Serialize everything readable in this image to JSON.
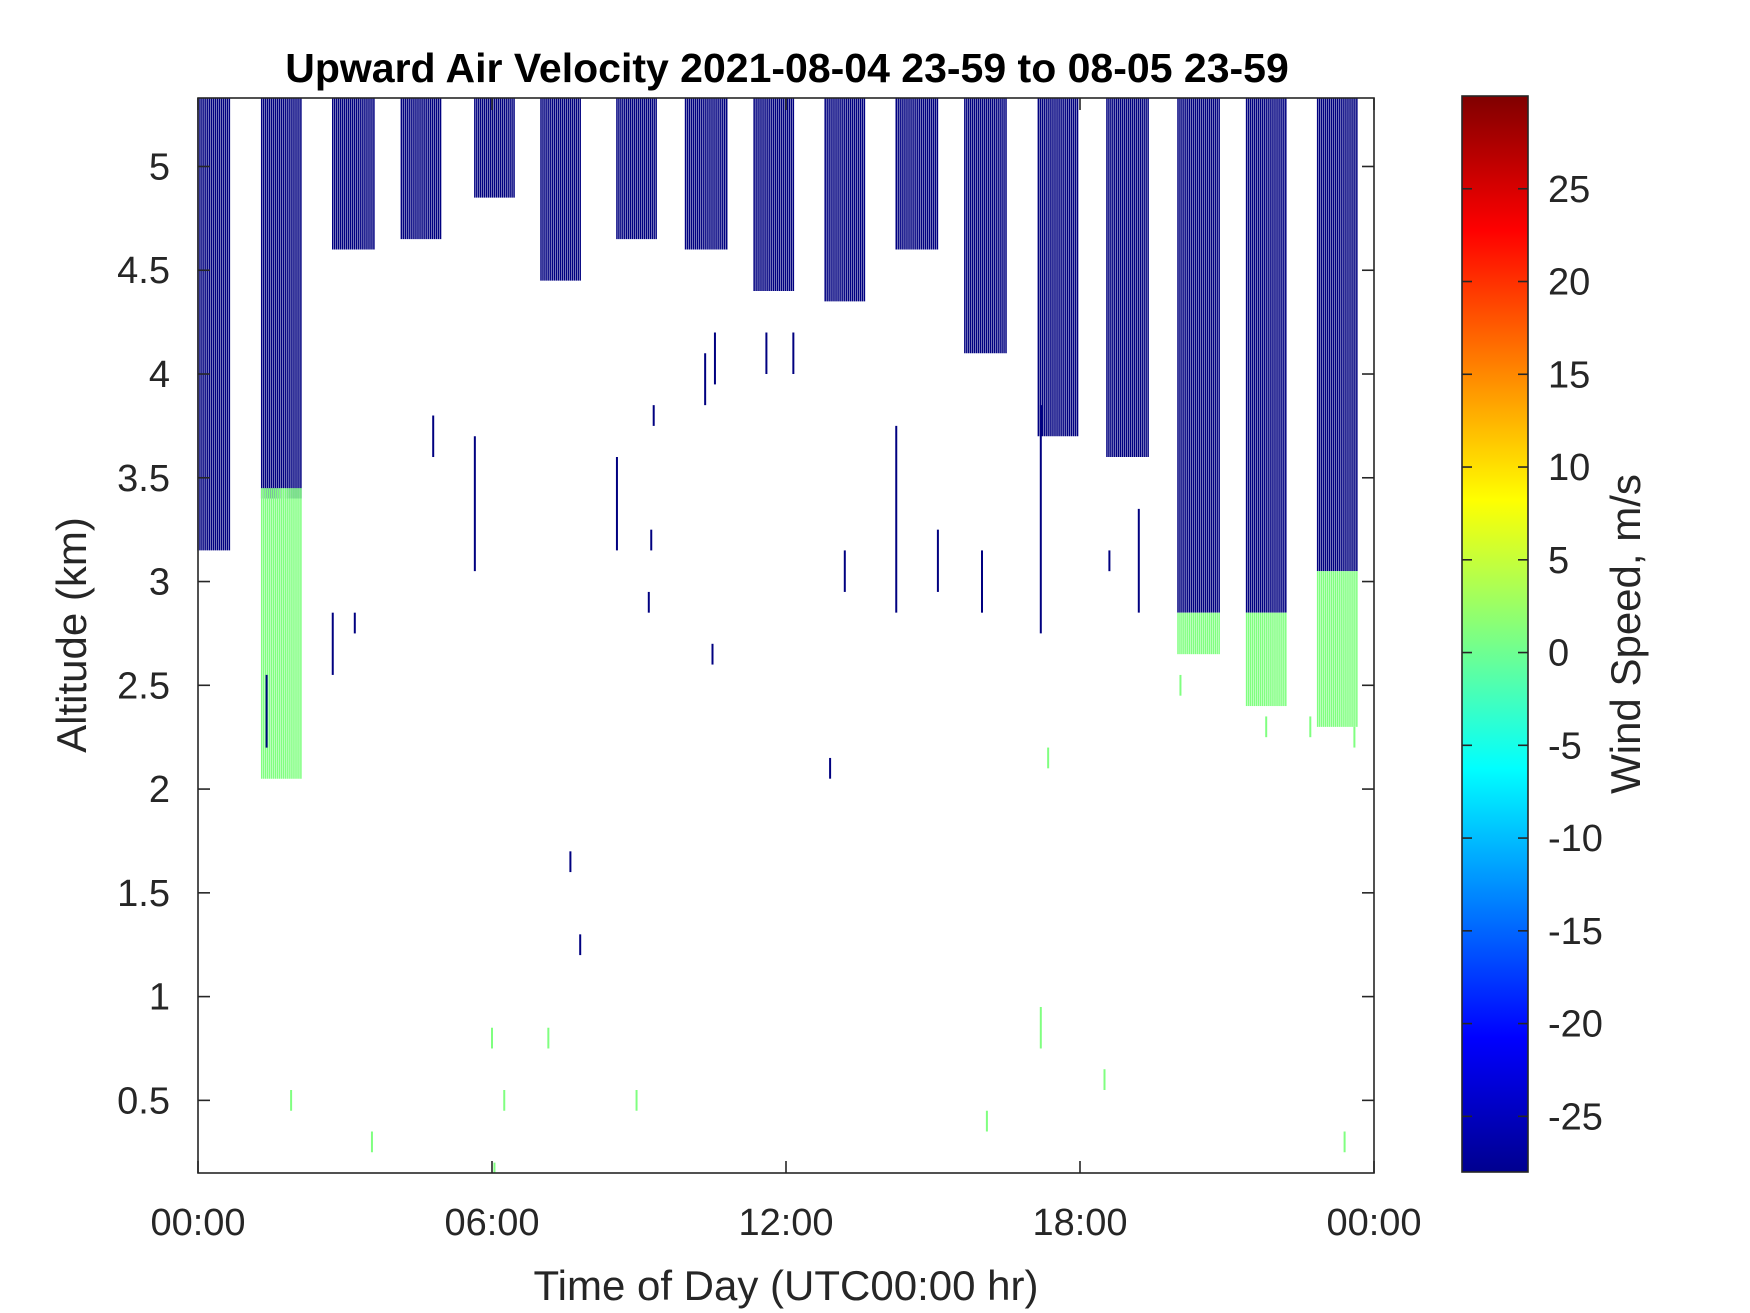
{
  "chart_data": {
    "type": "heatmap",
    "title": "Upward Air Velocity 2021-08-04 23-59 to 08-05 23-59",
    "xlabel": "Time of Day (UTC00:00 hr)",
    "ylabel": "Altitude (km)",
    "xlim": [
      0,
      24
    ],
    "ylim": [
      0.15,
      5.33
    ],
    "x_ticks": [
      0,
      6,
      12,
      18,
      24
    ],
    "x_tick_labels": [
      "00:00",
      "06:00",
      "12:00",
      "18:00",
      "00:00"
    ],
    "y_ticks": [
      0.5,
      1,
      1.5,
      2,
      2.5,
      3,
      3.5,
      4,
      4.5,
      5
    ],
    "y_tick_labels": [
      "0.5",
      "1",
      "1.5",
      "2",
      "2.5",
      "3",
      "3.5",
      "4",
      "4.5",
      "5"
    ],
    "grid": false,
    "colorbar": {
      "label": "Wind Speed, m/s",
      "colormap": "jet",
      "range": [
        -28,
        30
      ],
      "ticks": [
        -25,
        -20,
        -15,
        -10,
        -5,
        0,
        5,
        10,
        15,
        20,
        25
      ],
      "tick_labels": [
        "-25",
        "-20",
        "-15",
        "-10",
        "-5",
        "0",
        "5",
        "10",
        "15",
        "20",
        "25"
      ]
    },
    "profile_blocks": [
      {
        "start": 0.0,
        "end": 0.65,
        "top": 5.33,
        "bottom": 3.15,
        "value": -28
      },
      {
        "start": 1.3,
        "end": 2.1,
        "top": 5.33,
        "bottom": 3.4,
        "value": -28
      },
      {
        "start": 2.75,
        "end": 3.6,
        "top": 5.33,
        "bottom": 4.6,
        "value": -28
      },
      {
        "start": 4.15,
        "end": 4.95,
        "top": 5.33,
        "bottom": 4.65,
        "value": -28
      },
      {
        "start": 5.65,
        "end": 6.45,
        "top": 5.33,
        "bottom": 4.85,
        "value": -28
      },
      {
        "start": 7.0,
        "end": 7.8,
        "top": 5.33,
        "bottom": 4.45,
        "value": -28
      },
      {
        "start": 8.55,
        "end": 9.35,
        "top": 5.33,
        "bottom": 4.65,
        "value": -28
      },
      {
        "start": 9.95,
        "end": 10.8,
        "top": 5.33,
        "bottom": 4.6,
        "value": -28
      },
      {
        "start": 11.35,
        "end": 12.15,
        "top": 5.33,
        "bottom": 4.4,
        "value": -28
      },
      {
        "start": 12.8,
        "end": 13.6,
        "top": 5.33,
        "bottom": 4.35,
        "value": -28
      },
      {
        "start": 14.25,
        "end": 15.1,
        "top": 5.33,
        "bottom": 4.6,
        "value": -28
      },
      {
        "start": 15.65,
        "end": 16.5,
        "top": 5.33,
        "bottom": 4.1,
        "value": -28
      },
      {
        "start": 17.15,
        "end": 17.95,
        "top": 5.33,
        "bottom": 3.7,
        "value": -28
      },
      {
        "start": 18.55,
        "end": 19.4,
        "top": 5.33,
        "bottom": 3.6,
        "value": -28
      },
      {
        "start": 20.0,
        "end": 20.85,
        "top": 5.33,
        "bottom": 2.85,
        "value": -28
      },
      {
        "start": 21.4,
        "end": 22.2,
        "top": 5.33,
        "bottom": 2.85,
        "value": -28
      },
      {
        "start": 22.85,
        "end": 23.65,
        "top": 5.33,
        "bottom": 3.05,
        "value": -28
      }
    ],
    "near_zero_blocks": [
      {
        "start": 1.3,
        "end": 2.1,
        "top": 3.45,
        "bottom": 2.05,
        "value": 1
      },
      {
        "start": 20.0,
        "end": 20.85,
        "top": 2.85,
        "bottom": 2.65,
        "value": 1
      },
      {
        "start": 21.4,
        "end": 22.2,
        "top": 2.85,
        "bottom": 2.4,
        "value": 1
      },
      {
        "start": 22.85,
        "end": 23.65,
        "top": 3.05,
        "bottom": 2.3,
        "value": 1
      }
    ],
    "isolated_segments": [
      {
        "x": 1.4,
        "y0": 2.55,
        "y1": 2.2,
        "value": -28
      },
      {
        "x": 2.75,
        "y0": 2.85,
        "y1": 2.55,
        "value": -28
      },
      {
        "x": 3.2,
        "y0": 2.85,
        "y1": 2.75,
        "value": -28
      },
      {
        "x": 4.8,
        "y0": 3.8,
        "y1": 3.6,
        "value": -28
      },
      {
        "x": 5.65,
        "y0": 3.7,
        "y1": 3.05,
        "value": -28
      },
      {
        "x": 7.6,
        "y0": 1.7,
        "y1": 1.6,
        "value": -28
      },
      {
        "x": 7.8,
        "y0": 1.3,
        "y1": 1.2,
        "value": -28
      },
      {
        "x": 8.55,
        "y0": 3.6,
        "y1": 3.15,
        "value": -28
      },
      {
        "x": 9.3,
        "y0": 3.85,
        "y1": 3.75,
        "value": -28
      },
      {
        "x": 9.25,
        "y0": 3.25,
        "y1": 3.15,
        "value": -28
      },
      {
        "x": 9.2,
        "y0": 2.95,
        "y1": 2.85,
        "value": -28
      },
      {
        "x": 10.5,
        "y0": 2.7,
        "y1": 2.6,
        "value": -28
      },
      {
        "x": 10.35,
        "y0": 4.1,
        "y1": 3.85,
        "value": -28
      },
      {
        "x": 10.55,
        "y0": 4.2,
        "y1": 3.95,
        "value": -28
      },
      {
        "x": 11.6,
        "y0": 4.2,
        "y1": 4.0,
        "value": -28
      },
      {
        "x": 12.15,
        "y0": 4.2,
        "y1": 4.0,
        "value": -28
      },
      {
        "x": 12.9,
        "y0": 2.15,
        "y1": 2.05,
        "value": -28
      },
      {
        "x": 13.2,
        "y0": 3.15,
        "y1": 2.95,
        "value": -28
      },
      {
        "x": 14.25,
        "y0": 3.75,
        "y1": 2.85,
        "value": -28
      },
      {
        "x": 15.1,
        "y0": 3.25,
        "y1": 2.95,
        "value": -28
      },
      {
        "x": 16.0,
        "y0": 3.15,
        "y1": 2.85,
        "value": -28
      },
      {
        "x": 17.2,
        "y0": 3.85,
        "y1": 2.75,
        "value": -28
      },
      {
        "x": 18.6,
        "y0": 3.15,
        "y1": 3.05,
        "value": -28
      },
      {
        "x": 19.2,
        "y0": 3.35,
        "y1": 2.85,
        "value": -28
      },
      {
        "x": 1.9,
        "y0": 0.55,
        "y1": 0.45,
        "value": 1
      },
      {
        "x": 3.55,
        "y0": 0.35,
        "y1": 0.25,
        "value": 1
      },
      {
        "x": 6.0,
        "y0": 0.85,
        "y1": 0.75,
        "value": 1
      },
      {
        "x": 6.05,
        "y0": 0.2,
        "y1": 0.15,
        "value": 1
      },
      {
        "x": 6.25,
        "y0": 0.55,
        "y1": 0.45,
        "value": 1
      },
      {
        "x": 7.15,
        "y0": 0.85,
        "y1": 0.75,
        "value": 1
      },
      {
        "x": 8.95,
        "y0": 0.55,
        "y1": 0.45,
        "value": 1
      },
      {
        "x": 16.1,
        "y0": 0.45,
        "y1": 0.35,
        "value": 1
      },
      {
        "x": 17.2,
        "y0": 0.95,
        "y1": 0.75,
        "value": 1
      },
      {
        "x": 17.35,
        "y0": 2.2,
        "y1": 2.1,
        "value": 1
      },
      {
        "x": 18.5,
        "y0": 0.65,
        "y1": 0.55,
        "value": 1
      },
      {
        "x": 20.05,
        "y0": 2.55,
        "y1": 2.45,
        "value": 1
      },
      {
        "x": 21.8,
        "y0": 2.35,
        "y1": 2.25,
        "value": 1
      },
      {
        "x": 22.7,
        "y0": 2.35,
        "y1": 2.25,
        "value": 1
      },
      {
        "x": 23.6,
        "y0": 2.3,
        "y1": 2.2,
        "value": 1
      },
      {
        "x": 23.4,
        "y0": 0.35,
        "y1": 0.25,
        "value": 1
      }
    ]
  }
}
